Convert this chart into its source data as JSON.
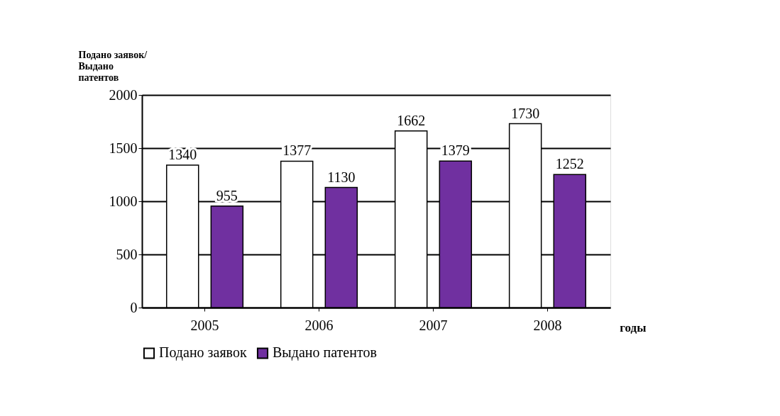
{
  "chart_data": {
    "type": "bar",
    "ylabel": "Подано заявок/\nВыдано\nпатентов",
    "xlabel": "годы",
    "categories": [
      "2005",
      "2006",
      "2007",
      "2008"
    ],
    "series": [
      {
        "name": "Подано заявок",
        "color": "#ffffff",
        "values": [
          1340,
          1377,
          1662,
          1730
        ]
      },
      {
        "name": "Выдано патентов",
        "color": "#7030a0",
        "values": [
          955,
          1130,
          1379,
          1252
        ]
      }
    ],
    "ylim": [
      0,
      2000
    ],
    "yticks": [
      0,
      500,
      1000,
      1500,
      2000
    ],
    "grid": "y",
    "legend": "bottom",
    "data_labels": true
  }
}
